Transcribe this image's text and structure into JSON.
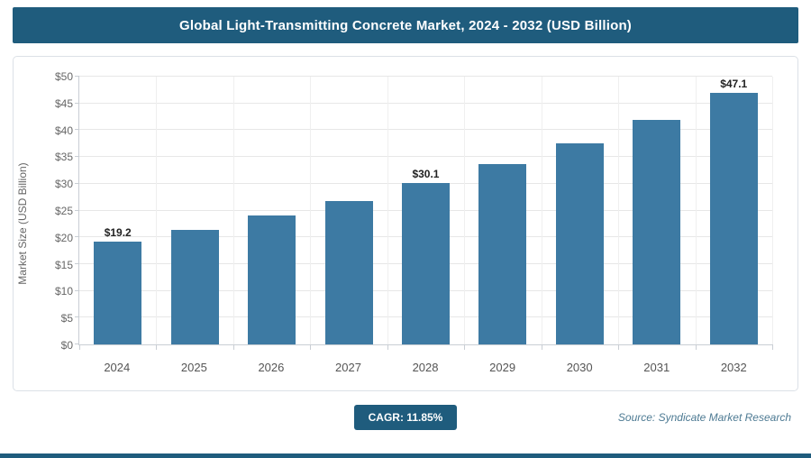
{
  "header": {
    "title": "Global Light-Transmitting Concrete Market, 2024 - 2032 (USD Billion)"
  },
  "chart_data": {
    "type": "bar",
    "title": "Global Light-Transmitting Concrete Market, 2024 - 2032 (USD Billion)",
    "categories": [
      "2024",
      "2025",
      "2026",
      "2027",
      "2028",
      "2029",
      "2030",
      "2031",
      "2032"
    ],
    "values": [
      19.2,
      21.4,
      24.0,
      26.8,
      30.1,
      33.6,
      37.6,
      42.0,
      47.1
    ],
    "bar_labels": [
      "$19.2",
      "",
      "",
      "",
      "$30.1",
      "",
      "",
      "",
      "$47.1"
    ],
    "xlabel": "",
    "ylabel": "Market Size (USD Billion)",
    "ylim": [
      0,
      50
    ],
    "ytick_step": 5,
    "ytick_prefix": "$",
    "grid": true,
    "legend": false,
    "bar_color": "#3d7aa3"
  },
  "footer": {
    "cagr_label": "CAGR: 11.85%",
    "source": "Source: Syndicate Market Research"
  },
  "colors": {
    "header_bg": "#1f5c7d",
    "accent": "#1f5c7d",
    "bar": "#3d7aa3"
  }
}
